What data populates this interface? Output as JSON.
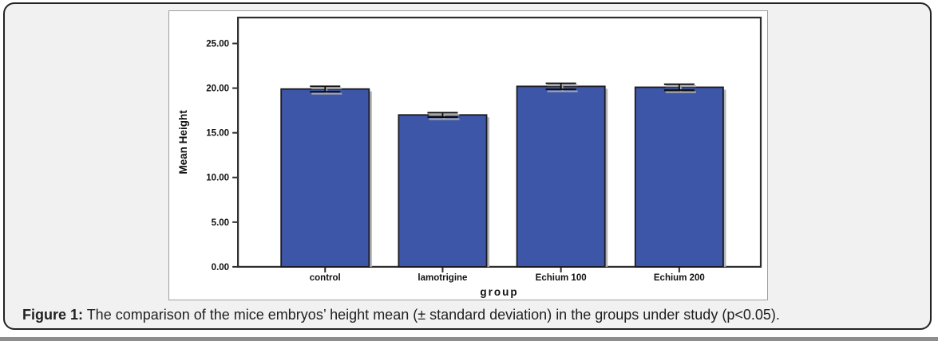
{
  "figure": {
    "caption_label": "Figure 1:",
    "caption_text": " The comparison of the mice embryos’ height mean (± standard deviation) in the groups under study (p<0.05)."
  },
  "colors": {
    "bar_fill": "#3e56a7",
    "bar_outline": "#1b1b22",
    "bar_shadow": "#b4b4b4",
    "error_bar": "#0d0d0d",
    "error_shadow": "#a8a8a8",
    "frame": "#2e2e2e",
    "panel_bg": "#ffffff",
    "card_bg": "#f1f1f2",
    "card_border": "#232323",
    "bottom_strip": "#8d8d8d"
  },
  "chart_data": {
    "type": "bar",
    "title": "",
    "xlabel": "group",
    "ylabel": "Mean Height",
    "categories": [
      "control",
      "lamotrigine",
      "Echium 100",
      "Echium 200"
    ],
    "values": [
      19.9,
      17.0,
      20.2,
      20.1
    ],
    "errors": [
      0.3,
      0.25,
      0.33,
      0.33
    ],
    "error_type": "standard deviation",
    "yticks": [
      0,
      5,
      10,
      15,
      20,
      25
    ],
    "ytick_labels": [
      "0.00",
      "5.00",
      "10.00",
      "15.00",
      "20.00",
      "25.00"
    ],
    "ylim": [
      0,
      27.9
    ],
    "grid": false,
    "legend": null
  }
}
